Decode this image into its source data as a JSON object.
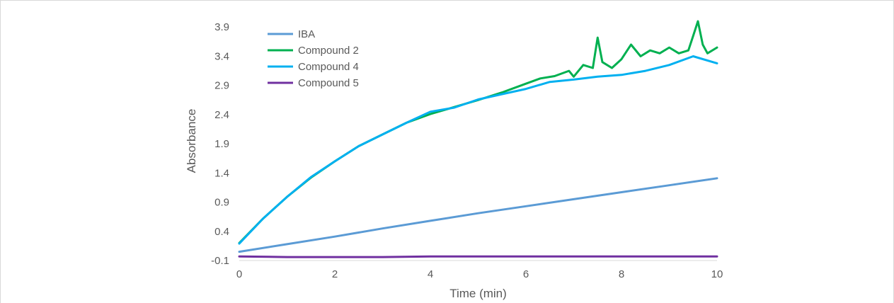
{
  "chart_data": {
    "type": "line",
    "title": "",
    "xlabel": "Time (min)",
    "ylabel": "Absorbance",
    "xlim": [
      0,
      10
    ],
    "ylim": [
      -0.1,
      4.0
    ],
    "x_ticks": [
      0,
      2,
      4,
      6,
      8,
      10
    ],
    "y_ticks": [
      -0.1,
      0.4,
      0.9,
      1.4,
      1.9,
      2.4,
      2.9,
      3.4,
      3.9
    ],
    "grid": false,
    "legend_position": "top-left",
    "series": [
      {
        "name": "IBA",
        "color": "#5b9bd5",
        "x": [
          0,
          1,
          2,
          3,
          4,
          5,
          6,
          7,
          8,
          9,
          10
        ],
        "y": [
          0.05,
          0.18,
          0.31,
          0.45,
          0.58,
          0.71,
          0.83,
          0.95,
          1.07,
          1.19,
          1.31
        ]
      },
      {
        "name": "Compound 2",
        "color": "#00b050",
        "x": [
          0,
          0.5,
          1,
          1.5,
          2,
          2.5,
          3,
          3.5,
          4,
          4.5,
          5,
          5.5,
          6,
          6.3,
          6.6,
          6.9,
          7.0,
          7.2,
          7.4,
          7.5,
          7.6,
          7.8,
          8.0,
          8.2,
          8.4,
          8.6,
          8.8,
          9.0,
          9.2,
          9.4,
          9.5,
          9.6,
          9.7,
          9.8,
          10.0
        ],
        "y": [
          0.2,
          0.62,
          0.99,
          1.32,
          1.6,
          1.86,
          2.06,
          2.26,
          2.41,
          2.53,
          2.65,
          2.78,
          2.93,
          3.02,
          3.06,
          3.15,
          3.05,
          3.25,
          3.2,
          3.72,
          3.3,
          3.2,
          3.35,
          3.6,
          3.4,
          3.5,
          3.45,
          3.55,
          3.45,
          3.5,
          3.75,
          4.0,
          3.6,
          3.45,
          3.55
        ]
      },
      {
        "name": "Compound 4",
        "color": "#00b0f0",
        "x": [
          0,
          0.5,
          1,
          1.5,
          2,
          2.5,
          3,
          3.5,
          4,
          4.5,
          5,
          5.5,
          6,
          6.5,
          7,
          7.5,
          8,
          8.5,
          9,
          9.5,
          10
        ],
        "y": [
          0.19,
          0.62,
          0.99,
          1.33,
          1.6,
          1.86,
          2.06,
          2.26,
          2.45,
          2.52,
          2.66,
          2.75,
          2.84,
          2.96,
          3.0,
          3.05,
          3.08,
          3.15,
          3.25,
          3.4,
          3.28
        ]
      },
      {
        "name": "Compound 5",
        "color": "#7030a0",
        "x": [
          0,
          1,
          2,
          3,
          4,
          5,
          6,
          7,
          8,
          9,
          10
        ],
        "y": [
          -0.03,
          -0.04,
          -0.04,
          -0.04,
          -0.03,
          -0.03,
          -0.03,
          -0.03,
          -0.03,
          -0.03,
          -0.03
        ]
      }
    ]
  }
}
